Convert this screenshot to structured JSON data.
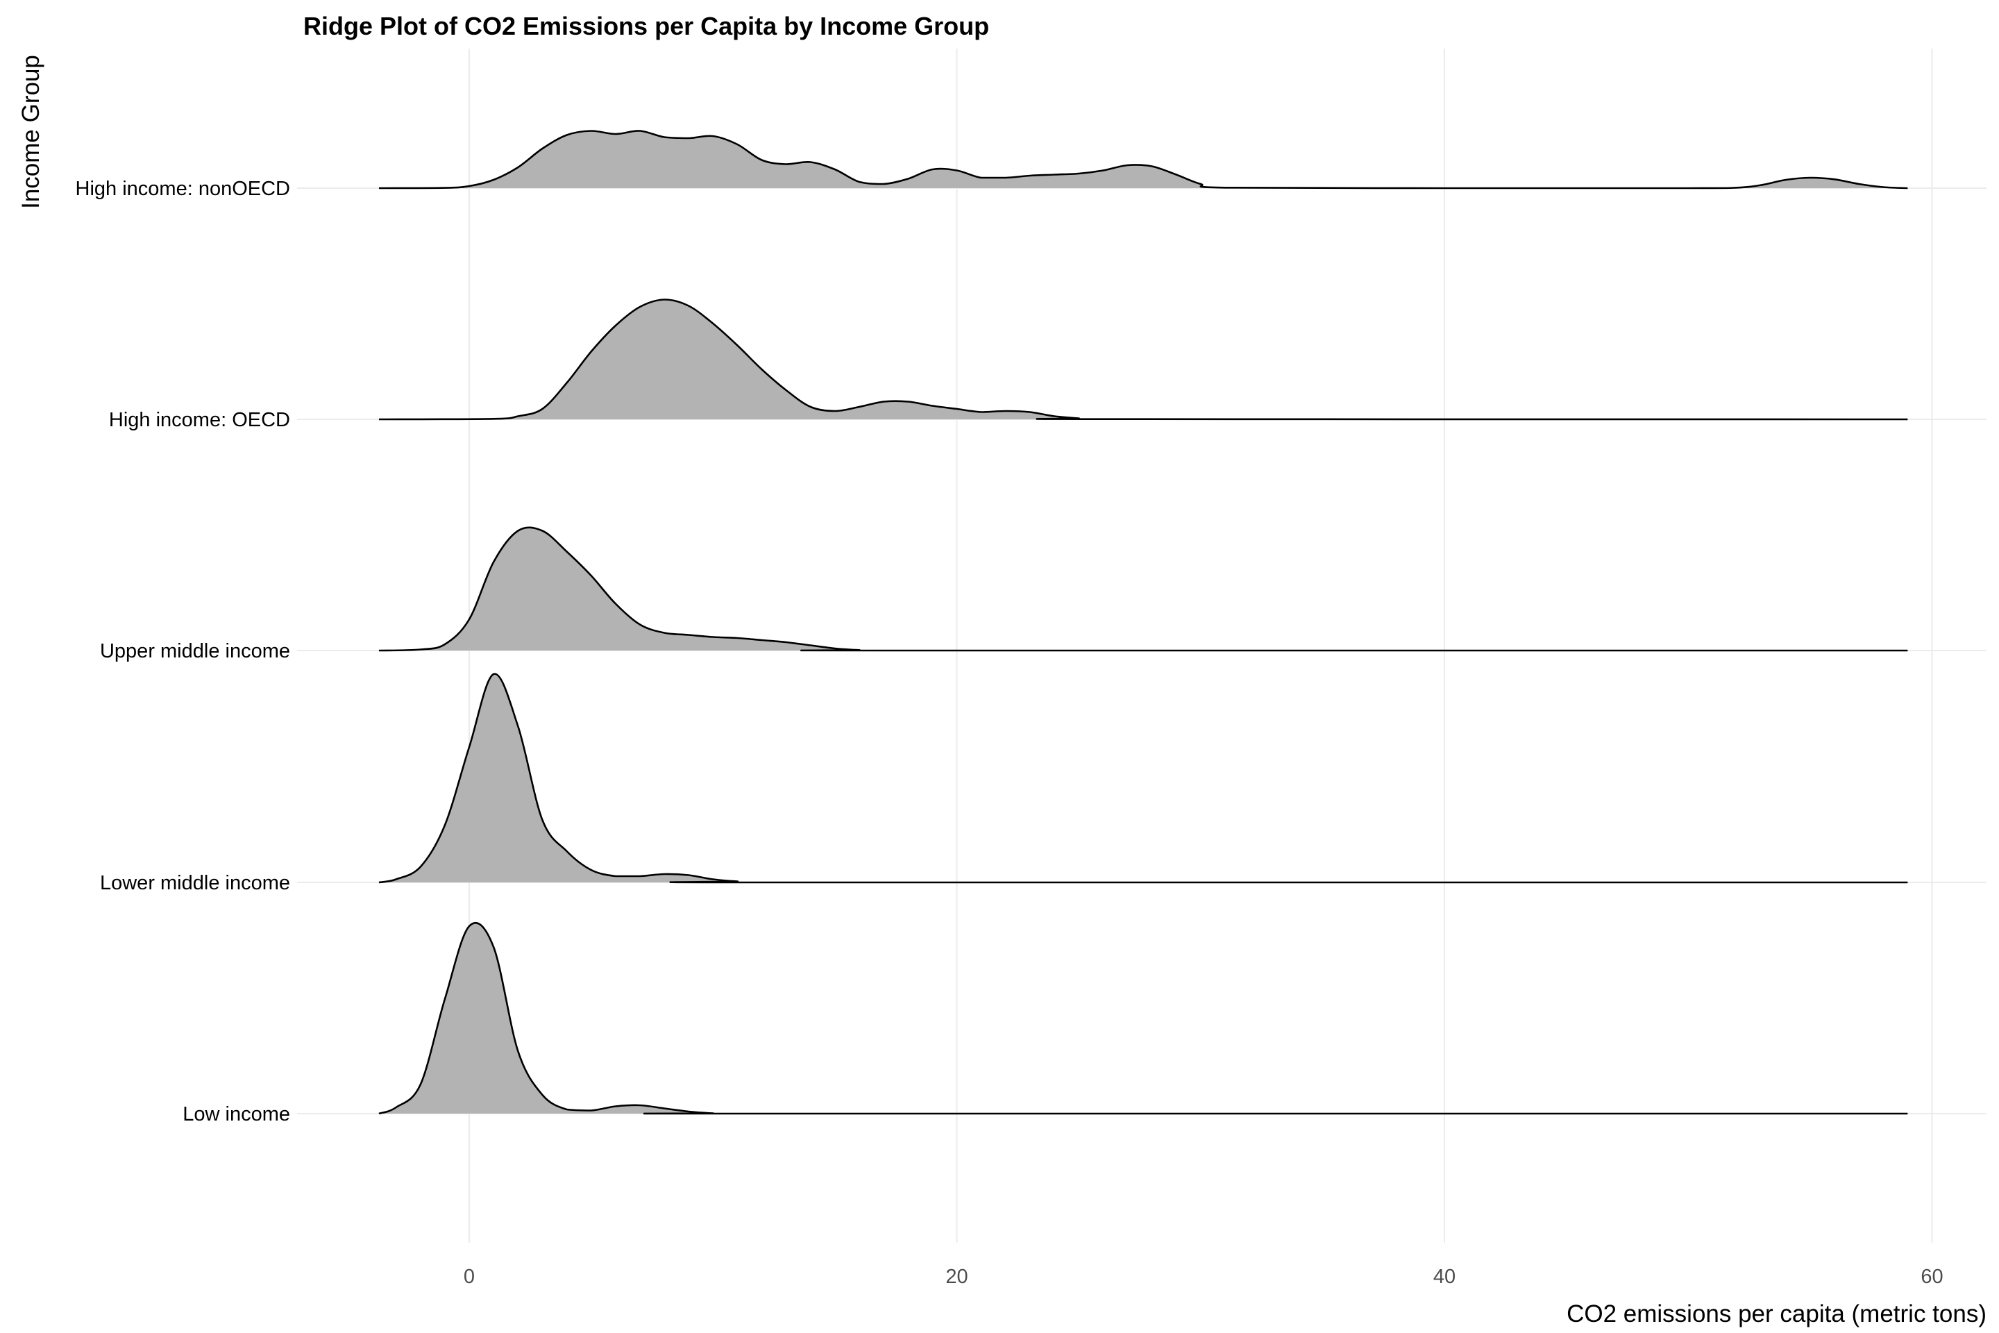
{
  "chart_data": {
    "type": "ridgeline",
    "title": "Ridge Plot of CO2 Emissions per Capita by Income Group",
    "xlabel": "CO2 emissions per capita (metric tons)",
    "ylabel": "Income Group",
    "xlim": [
      -14,
      62
    ],
    "x_ticks": [
      0,
      20,
      40,
      60
    ],
    "grid": "on",
    "fill_color": "#b3b3b3",
    "line_color": "#000000",
    "categories": [
      "High income: nonOECD",
      "High income: OECD",
      "Upper middle income",
      "Lower middle income",
      "Low income"
    ],
    "series": [
      {
        "name": "High income: nonOECD",
        "density": [
          [
            -3.7,
            0
          ],
          [
            -1,
            0.003
          ],
          [
            0,
            0.02
          ],
          [
            1,
            0.08
          ],
          [
            2,
            0.2
          ],
          [
            3,
            0.38
          ],
          [
            4,
            0.51
          ],
          [
            5,
            0.55
          ],
          [
            6,
            0.52
          ],
          [
            7,
            0.55
          ],
          [
            8,
            0.49
          ],
          [
            9,
            0.48
          ],
          [
            10,
            0.5
          ],
          [
            11,
            0.42
          ],
          [
            12,
            0.27
          ],
          [
            13,
            0.23
          ],
          [
            14,
            0.25
          ],
          [
            15,
            0.18
          ],
          [
            16,
            0.06
          ],
          [
            17,
            0.04
          ],
          [
            18,
            0.09
          ],
          [
            19,
            0.18
          ],
          [
            20,
            0.17
          ],
          [
            21,
            0.1
          ],
          [
            22,
            0.1
          ],
          [
            23,
            0.12
          ],
          [
            24,
            0.13
          ],
          [
            25,
            0.14
          ],
          [
            26,
            0.17
          ],
          [
            27,
            0.22
          ],
          [
            28,
            0.21
          ],
          [
            29,
            0.13
          ],
          [
            30,
            0.04
          ],
          [
            31,
            0.005
          ],
          [
            40,
            0
          ],
          [
            50,
            0
          ],
          [
            52,
            0.005
          ],
          [
            53,
            0.03
          ],
          [
            54,
            0.08
          ],
          [
            55,
            0.1
          ],
          [
            56,
            0.085
          ],
          [
            57,
            0.04
          ],
          [
            58,
            0.01
          ],
          [
            59,
            0
          ]
        ]
      },
      {
        "name": "High income: OECD",
        "density": [
          [
            -3.7,
            0
          ],
          [
            1,
            0.005
          ],
          [
            2,
            0.03
          ],
          [
            3,
            0.1
          ],
          [
            4,
            0.35
          ],
          [
            5,
            0.65
          ],
          [
            6,
            0.9
          ],
          [
            7,
            1.08
          ],
          [
            8,
            1.15
          ],
          [
            9,
            1.09
          ],
          [
            10,
            0.92
          ],
          [
            11,
            0.71
          ],
          [
            12,
            0.48
          ],
          [
            13,
            0.28
          ],
          [
            14,
            0.12
          ],
          [
            15,
            0.08
          ],
          [
            16,
            0.12
          ],
          [
            17,
            0.17
          ],
          [
            18,
            0.17
          ],
          [
            19,
            0.13
          ],
          [
            20,
            0.1
          ],
          [
            21,
            0.07
          ],
          [
            22,
            0.08
          ],
          [
            23,
            0.07
          ],
          [
            24,
            0.03
          ],
          [
            25,
            0.01
          ],
          [
            26,
            0.002
          ],
          [
            59,
            0
          ]
        ]
      },
      {
        "name": "Upper middle income",
        "density": [
          [
            -3.7,
            0
          ],
          [
            -2,
            0.01
          ],
          [
            -1,
            0.06
          ],
          [
            0,
            0.3
          ],
          [
            1,
            0.85
          ],
          [
            2,
            1.15
          ],
          [
            3,
            1.15
          ],
          [
            4,
            0.95
          ],
          [
            5,
            0.72
          ],
          [
            6,
            0.45
          ],
          [
            7,
            0.25
          ],
          [
            8,
            0.17
          ],
          [
            9,
            0.15
          ],
          [
            10,
            0.13
          ],
          [
            11,
            0.12
          ],
          [
            12,
            0.1
          ],
          [
            13,
            0.08
          ],
          [
            14,
            0.05
          ],
          [
            15,
            0.02
          ],
          [
            16,
            0.005
          ],
          [
            17,
            0
          ],
          [
            59,
            0
          ]
        ]
      },
      {
        "name": "Lower middle income",
        "density": [
          [
            -3.7,
            0
          ],
          [
            -3,
            0.03
          ],
          [
            -2,
            0.15
          ],
          [
            -1,
            0.55
          ],
          [
            0,
            1.3
          ],
          [
            1,
            2.0
          ],
          [
            2,
            1.5
          ],
          [
            3,
            0.6
          ],
          [
            4,
            0.3
          ],
          [
            5,
            0.12
          ],
          [
            6,
            0.06
          ],
          [
            7,
            0.06
          ],
          [
            8,
            0.08
          ],
          [
            9,
            0.07
          ],
          [
            10,
            0.03
          ],
          [
            11,
            0.01
          ],
          [
            12,
            0
          ],
          [
            59,
            0
          ]
        ]
      },
      {
        "name": "Low income",
        "density": [
          [
            -3.7,
            0
          ],
          [
            -3,
            0.06
          ],
          [
            -2,
            0.28
          ],
          [
            -1,
            1.1
          ],
          [
            0,
            1.8
          ],
          [
            1,
            1.6
          ],
          [
            2,
            0.6
          ],
          [
            3,
            0.18
          ],
          [
            4,
            0.04
          ],
          [
            5,
            0.03
          ],
          [
            6,
            0.07
          ],
          [
            7,
            0.08
          ],
          [
            8,
            0.05
          ],
          [
            9,
            0.02
          ],
          [
            10,
            0.003
          ],
          [
            11,
            0
          ],
          [
            59,
            0
          ]
        ]
      }
    ]
  }
}
